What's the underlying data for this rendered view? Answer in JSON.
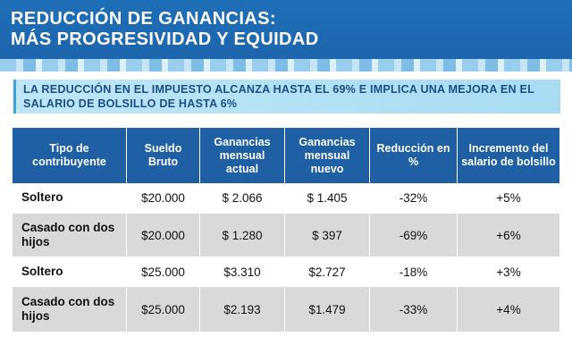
{
  "header": {
    "title_line1": "REDUCCIÓN DE GANANCIAS:",
    "title_line2": "MÁS PROGRESIVIDAD Y EQUIDAD"
  },
  "subtitle": "LA REDUCCIÓN EN EL IMPUESTO ALCANZA HASTA EL 69% E IMPLICA UNA MEJORA EN EL SALARIO DE BOLSILLO DE HASTA 6%",
  "table": {
    "headers": [
      "Tipo de contribuyente",
      "Sueldo Bruto",
      "Ganancias mensual actual",
      "Ganancias mensual nuevo",
      "Reducción en %",
      "Incremento del salario de bolsillo"
    ],
    "rows": [
      [
        "Soltero",
        "$20.000",
        "$ 2.066",
        "$ 1.405",
        "-32%",
        "+5%"
      ],
      [
        "Casado con dos hijos",
        "$20.000",
        "$ 1.280",
        "$ 397",
        "-69%",
        "+6%"
      ],
      [
        "Soltero",
        "$25.000",
        "$3.310",
        "$2.727",
        "-18%",
        "+3%"
      ],
      [
        "Casado con dos hijos",
        "$25.000",
        "$2.193",
        "$1.479",
        "-33%",
        "+4%"
      ]
    ]
  },
  "colors": {
    "header_blue": "#1f6fb8",
    "table_header_blue": "#1f5fa4",
    "banner_light_blue": "#a9dcf3",
    "banner_text": "#1a4f86",
    "row_gray": "#d9d9d9"
  }
}
